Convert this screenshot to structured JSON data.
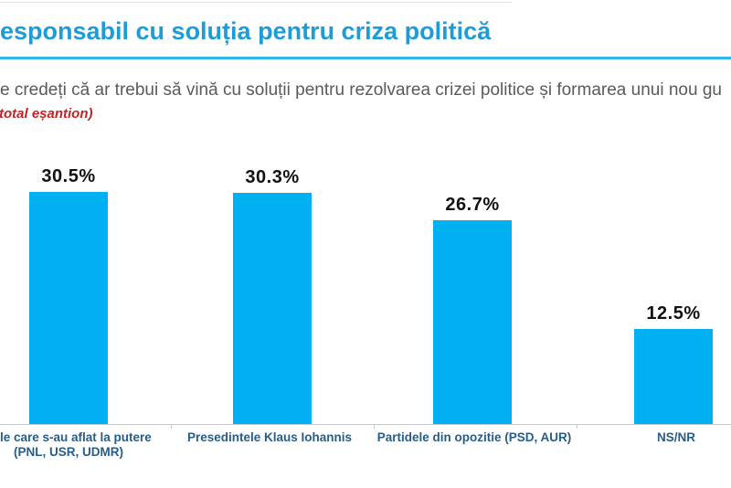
{
  "header": {
    "title": "esponsabil cu soluția pentru criza politică",
    "question": "e credeți că ar trebui să vină cu soluții pentru rezolvarea crizei politice și formarea unui nou gu",
    "note": "total eșantion)"
  },
  "colors": {
    "title_blue": "#1e9cd7",
    "underline_cyan": "#2fb9e9",
    "question_gray": "#5a5a5a",
    "note_red": "#c02424",
    "bar_cyan": "#00b0f0",
    "category_navy": "#275d87",
    "axis_gray": "#c8c8c8",
    "value_label_black": "#111111"
  },
  "chart_data": {
    "type": "bar",
    "title": "",
    "xlabel": "",
    "ylabel": "",
    "ylim": [
      0,
      35
    ],
    "grid": false,
    "legend": false,
    "categories": [
      [
        "dele care s-au aflat la putere",
        "(PNL, USR, UDMR)"
      ],
      [
        "Presedintele Klaus Iohannis"
      ],
      [
        "Partidele din opozitie (PSD, AUR)"
      ],
      [
        "NS/NR"
      ]
    ],
    "values": [
      30.5,
      30.3,
      26.7,
      12.5
    ],
    "value_labels": [
      "30.5%",
      "30.3%",
      "26.7%",
      "12.5%"
    ]
  }
}
